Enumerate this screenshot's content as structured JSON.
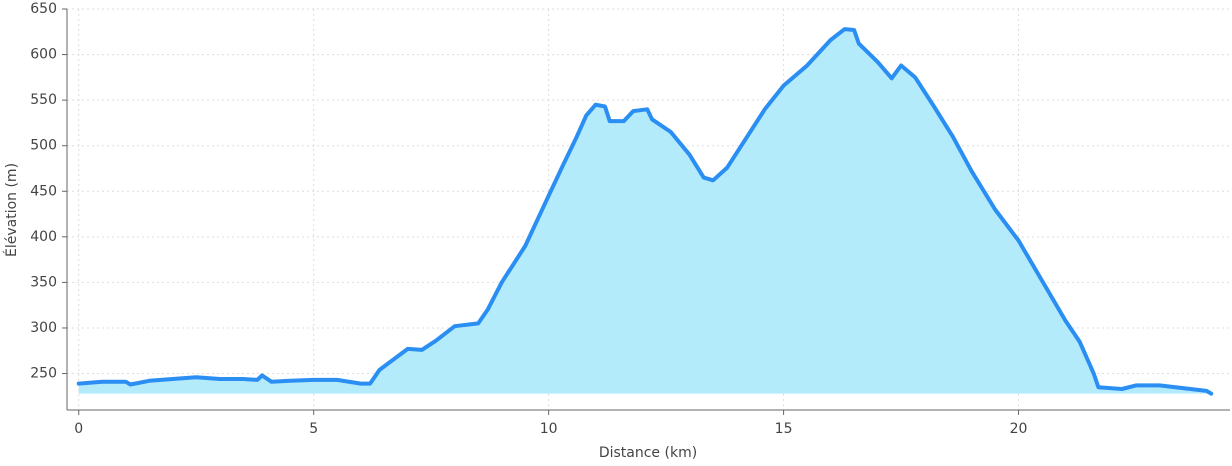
{
  "chart_data": {
    "type": "area",
    "xlabel": "Distance (km)",
    "ylabel": "Élévation (m)",
    "x": [
      0,
      0.5,
      1,
      1.1,
      1.5,
      2,
      2.5,
      3,
      3.5,
      3.8,
      3.9,
      4.1,
      4.5,
      5,
      5.5,
      6,
      6.2,
      6.4,
      7,
      7.3,
      7.6,
      8,
      8.5,
      8.7,
      9,
      9.5,
      10,
      10.3,
      10.6,
      10.8,
      11,
      11.2,
      11.3,
      11.6,
      11.8,
      12.1,
      12.2,
      12.6,
      13,
      13.3,
      13.5,
      13.8,
      14.2,
      14.6,
      15,
      15.5,
      16,
      16.3,
      16.5,
      16.6,
      17,
      17.3,
      17.5,
      17.8,
      18.2,
      18.6,
      19,
      19.5,
      20,
      20.5,
      21,
      21.3,
      21.6,
      21.7,
      22.2,
      22.5,
      23,
      23.5,
      24,
      24.1
    ],
    "series": [
      {
        "name": "Élévation",
        "color": "#2a8ef2",
        "fill": "#b3ebfa",
        "values": [
          239,
          241,
          241,
          238,
          242,
          244,
          246,
          244,
          244,
          243,
          248,
          241,
          242,
          243,
          243,
          239,
          239,
          254,
          277,
          276,
          286,
          302,
          305,
          320,
          350,
          390,
          445,
          478,
          510,
          533,
          545,
          543,
          527,
          527,
          538,
          540,
          529,
          515,
          490,
          465,
          462,
          476,
          508,
          540,
          566,
          588,
          616,
          628,
          627,
          612,
          592,
          574,
          588,
          575,
          543,
          510,
          472,
          430,
          396,
          352,
          308,
          285,
          250,
          235,
          233,
          237,
          237,
          234,
          231,
          228
        ]
      }
    ],
    "xlim": [
      -0.25,
      24.5
    ],
    "ylim": [
      210,
      650
    ],
    "xticks": [
      0,
      5,
      10,
      15,
      20
    ],
    "yticks": [
      250,
      300,
      350,
      400,
      450,
      500,
      550,
      600,
      650
    ],
    "grid": true
  }
}
